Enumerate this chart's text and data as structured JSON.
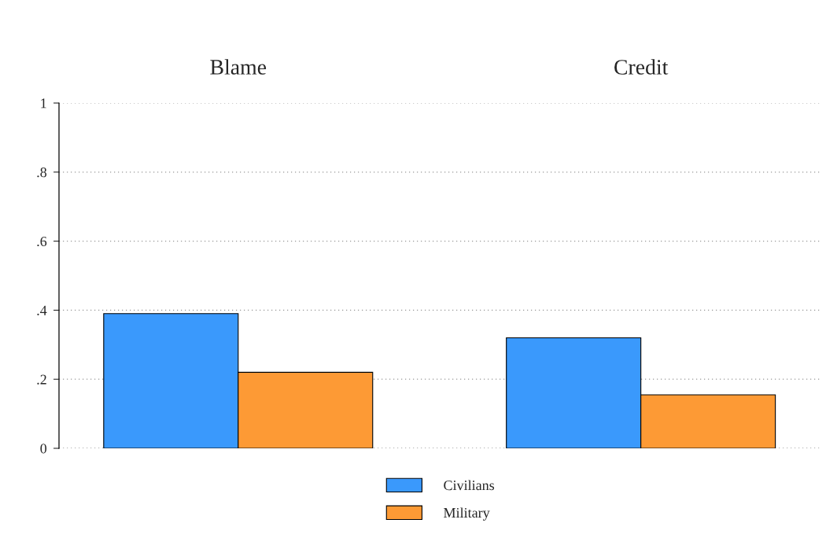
{
  "chart_data": {
    "type": "bar",
    "categories": [
      "Blame",
      "Credit"
    ],
    "series": [
      {
        "name": "Civilians",
        "color": "#3a99fc",
        "values": [
          0.39,
          0.32
        ]
      },
      {
        "name": "Military",
        "color": "#fd9a35",
        "values": [
          0.22,
          0.155
        ]
      }
    ],
    "ylim": [
      0,
      1
    ],
    "yticks": [
      0,
      {
        "value": 0.2,
        "label": ".2"
      },
      {
        "value": 0.4,
        "label": ".4"
      },
      {
        "value": 0.6,
        "label": ".6"
      },
      {
        "value": 0.8,
        "label": ".8"
      },
      1
    ],
    "grid": "y",
    "legend": "bottom"
  }
}
